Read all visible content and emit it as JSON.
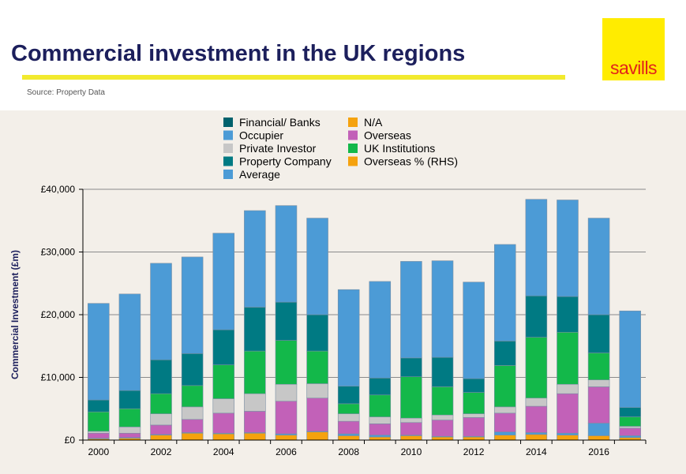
{
  "header": {
    "title": "Commercial investment in the UK regions",
    "source": "Source: Property Data",
    "logo_text": "savills"
  },
  "colors": {
    "financial": "#00616c",
    "occupier": "#4c9bd6",
    "private": "#c7c7c7",
    "property": "#007a83",
    "average": "#4c9bd6",
    "na": "#f5a20e",
    "overseas": "#c261b8",
    "uk_inst": "#13b84a",
    "overseas_pct": "#f5a20e",
    "title": "#1c1f5c",
    "brand_yellow": "#ffec00",
    "brand_red": "#e2231a"
  },
  "chart_data": {
    "type": "bar",
    "stacked": true,
    "ylabel": "Commercial Investment (£m)",
    "ylim": [
      0,
      40000
    ],
    "yticks": [
      "£0",
      "£10,000",
      "£20,000",
      "£30,000",
      "£40,000"
    ],
    "grid": true,
    "legend_position": "top",
    "legend": [
      {
        "label": "Financial/ Banks",
        "color_key": "financial"
      },
      {
        "label": "Occupier",
        "color_key": "occupier"
      },
      {
        "label": "Private Investor",
        "color_key": "private"
      },
      {
        "label": "Property Company",
        "color_key": "property"
      },
      {
        "label": "Average",
        "color_key": "average"
      },
      {
        "label": "N/A",
        "color_key": "na"
      },
      {
        "label": "Overseas",
        "color_key": "overseas"
      },
      {
        "label": "UK Institutions",
        "color_key": "uk_inst"
      },
      {
        "label": "Overseas % (RHS)",
        "color_key": "overseas_pct"
      }
    ],
    "categories": [
      "2000",
      "2001",
      "2002",
      "2003",
      "2004",
      "2005",
      "2006",
      "2007",
      "2008",
      "2009",
      "2010",
      "2011",
      "2012",
      "2013",
      "2014",
      "2015",
      "2016",
      "2017"
    ],
    "xtick_labels": [
      "2000",
      "",
      "2002",
      "",
      "2004",
      "",
      "2006",
      "",
      "2008",
      "",
      "2010",
      "",
      "2012",
      "",
      "2014",
      "",
      "2016",
      ""
    ],
    "series": [
      {
        "name": "N/A",
        "color_key": "na",
        "values": [
          200,
          300,
          800,
          1100,
          1000,
          1100,
          800,
          1300,
          700,
          500,
          700,
          500,
          500,
          800,
          900,
          800,
          700,
          400
        ]
      },
      {
        "name": "Occupier",
        "color_key": "occupier",
        "values": [
          100,
          100,
          100,
          100,
          100,
          100,
          200,
          100,
          300,
          300,
          100,
          100,
          100,
          500,
          300,
          300,
          2000,
          300
        ]
      },
      {
        "name": "Overseas",
        "color_key": "overseas",
        "values": [
          800,
          700,
          1500,
          2100,
          3200,
          3400,
          5200,
          5300,
          2000,
          1800,
          2000,
          2600,
          3000,
          3000,
          4200,
          6300,
          5800,
          1200
        ]
      },
      {
        "name": "Private Investor",
        "color_key": "private",
        "values": [
          300,
          1000,
          1800,
          2000,
          2300,
          2800,
          2700,
          2300,
          1200,
          1100,
          700,
          800,
          600,
          1000,
          1300,
          1500,
          1100,
          300
        ]
      },
      {
        "name": "UK Institutions",
        "color_key": "uk_inst",
        "values": [
          3100,
          2900,
          3200,
          3400,
          5400,
          6800,
          7000,
          5200,
          1600,
          3500,
          6600,
          4500,
          3400,
          6600,
          9700,
          8300,
          4300,
          1500
        ]
      },
      {
        "name": "Property Company",
        "color_key": "property",
        "values": [
          1900,
          2900,
          5400,
          5100,
          5600,
          7000,
          6100,
          5800,
          2800,
          2700,
          3000,
          4700,
          2200,
          3900,
          6600,
          5700,
          6100,
          1500
        ]
      },
      {
        "name": "Average",
        "color_key": "average",
        "values": [
          15400,
          15400,
          15400,
          15400,
          15400,
          15400,
          15400,
          15400,
          15400,
          15400,
          15400,
          15400,
          15400,
          15400,
          15400,
          15400,
          15400,
          15400
        ]
      }
    ]
  }
}
